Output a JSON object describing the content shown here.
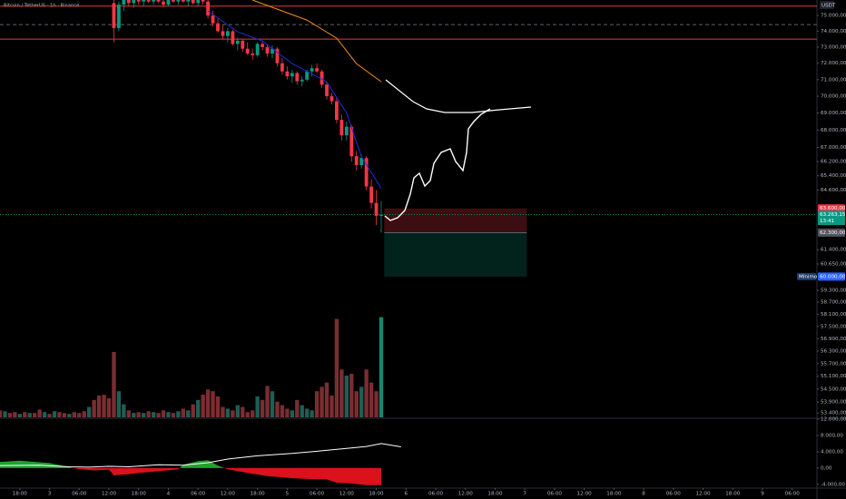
{
  "chart_data": {
    "type": "candlestick",
    "title": "Bitcoin / TetherUS · 1h · Binance",
    "currency": "USDT",
    "log_scale": true,
    "ylim": [
      53200,
      76000
    ],
    "xlim": [
      -4,
      161
    ],
    "yticks": [
      {
        "value": 75000,
        "label": "75.000,00"
      },
      {
        "value": 74000,
        "label": "74.000,00"
      },
      {
        "value": 73000,
        "label": "73.000,00"
      },
      {
        "value": 72000,
        "label": "72.000,00"
      },
      {
        "value": 71000,
        "label": "71.000,00"
      },
      {
        "value": 70000,
        "label": "70.000,00"
      },
      {
        "value": 69000,
        "label": "69.000,00"
      },
      {
        "value": 68000,
        "label": "68.000,00"
      },
      {
        "value": 67000,
        "label": "67.000,00"
      },
      {
        "value": 66200,
        "label": "66.200,00"
      },
      {
        "value": 65400,
        "label": "65.400,00"
      },
      {
        "value": 64600,
        "label": "64.600,00"
      },
      {
        "value": 61400,
        "label": "61.400,00"
      },
      {
        "value": 60650,
        "label": "60.650,00"
      },
      {
        "value": 59300,
        "label": "59.300,00"
      },
      {
        "value": 58700,
        "label": "58.700,00"
      },
      {
        "value": 58100,
        "label": "58.100,00"
      },
      {
        "value": 57500,
        "label": "57.500,00"
      },
      {
        "value": 56900,
        "label": "56.900,00"
      },
      {
        "value": 56300,
        "label": "56.300,00"
      },
      {
        "value": 55700,
        "label": "55.700,00"
      },
      {
        "value": 55100,
        "label": "55.100,00"
      },
      {
        "value": 54500,
        "label": "54.500,00"
      },
      {
        "value": 53900,
        "label": "53.900,00"
      },
      {
        "value": 53400,
        "label": "53.400,00"
      }
    ],
    "xticks": [
      {
        "value": 0,
        "label": "18:00"
      },
      {
        "value": 6,
        "label": "3"
      },
      {
        "value": 12,
        "label": "06:00"
      },
      {
        "value": 18,
        "label": "12:00"
      },
      {
        "value": 24,
        "label": "18:00"
      },
      {
        "value": 30,
        "label": "4"
      },
      {
        "value": 36,
        "label": "06:00"
      },
      {
        "value": 42,
        "label": "12:00"
      },
      {
        "value": 48,
        "label": "18:00"
      },
      {
        "value": 54,
        "label": "5"
      },
      {
        "value": 60,
        "label": "06:00"
      },
      {
        "value": 66,
        "label": "12:00"
      },
      {
        "value": 72,
        "label": "18:00"
      },
      {
        "value": 78,
        "label": "6"
      },
      {
        "value": 84,
        "label": "06:00"
      },
      {
        "value": 90,
        "label": "12:00"
      },
      {
        "value": 96,
        "label": "18:00"
      },
      {
        "value": 102,
        "label": "7"
      },
      {
        "value": 108,
        "label": "06:00"
      },
      {
        "value": 114,
        "label": "12:00"
      },
      {
        "value": 120,
        "label": "18:00"
      },
      {
        "value": 126,
        "label": "8"
      },
      {
        "value": 132,
        "label": "06:00"
      },
      {
        "value": 138,
        "label": "12:00"
      },
      {
        "value": 144,
        "label": "18:00"
      },
      {
        "value": 150,
        "label": "9"
      },
      {
        "value": 156,
        "label": "06:00"
      }
    ],
    "up_color": "#089981",
    "down_color": "#f23645",
    "x": [
      19,
      20,
      21,
      22,
      23,
      24,
      25,
      26,
      27,
      28,
      29,
      30,
      31,
      32,
      33,
      34,
      35,
      36,
      37,
      38,
      39,
      40,
      41,
      42,
      43,
      44,
      45,
      46,
      47,
      48,
      49,
      50,
      51,
      52,
      53,
      54,
      55,
      56,
      57,
      58,
      59,
      60,
      61,
      62,
      63,
      64,
      65,
      66,
      67,
      68,
      69,
      70,
      71,
      72,
      73
    ],
    "open": [
      75800,
      74200,
      75700,
      76100,
      75800,
      76000,
      75900,
      76100,
      75900,
      76000,
      75900,
      75700,
      76000,
      75900,
      76100,
      75900,
      76000,
      75800,
      76000,
      75900,
      75000,
      74500,
      74000,
      73700,
      74000,
      73200,
      73400,
      72900,
      72600,
      72500,
      73200,
      73000,
      72600,
      72900,
      72000,
      71500,
      71200,
      71400,
      70900,
      71000,
      71500,
      71700,
      71500,
      70700,
      70000,
      69700,
      68600,
      67700,
      68200,
      66500,
      66000,
      66400,
      64800,
      63900,
      63200
    ],
    "high": [
      76200,
      75900,
      76300,
      76400,
      76200,
      76300,
      76200,
      76400,
      76200,
      76300,
      76100,
      76100,
      76300,
      76200,
      76400,
      76200,
      76200,
      76100,
      76300,
      76200,
      75300,
      74800,
      74400,
      74200,
      74100,
      73600,
      73500,
      73300,
      72900,
      73300,
      73400,
      73200,
      73100,
      73000,
      72300,
      71800,
      71600,
      71500,
      71200,
      71600,
      71900,
      72000,
      71600,
      70900,
      70200,
      69900,
      68900,
      68500,
      68300,
      66800,
      66600,
      66500,
      65200,
      64600,
      64000
    ],
    "low": [
      73300,
      74000,
      75300,
      75600,
      75500,
      75700,
      75600,
      75800,
      75700,
      75800,
      75500,
      75600,
      75800,
      75700,
      75800,
      75600,
      75700,
      75600,
      75700,
      74800,
      74300,
      73900,
      73500,
      73300,
      73100,
      72800,
      72700,
      72500,
      72200,
      72400,
      72800,
      72400,
      72300,
      71800,
      71300,
      71000,
      70800,
      70700,
      70600,
      70900,
      71200,
      71400,
      70500,
      69800,
      69500,
      68400,
      67400,
      67400,
      66200,
      65700,
      65800,
      64600,
      63600,
      62700,
      62300
    ],
    "close": [
      74200,
      75700,
      76100,
      75800,
      76000,
      75900,
      76100,
      75900,
      76000,
      75900,
      75700,
      76000,
      75900,
      76100,
      75900,
      76000,
      75800,
      76000,
      75900,
      75000,
      74500,
      74000,
      73700,
      74000,
      73200,
      73400,
      72900,
      72600,
      72500,
      73200,
      73000,
      72600,
      72900,
      72000,
      71500,
      71200,
      71400,
      70900,
      71000,
      71500,
      71700,
      71500,
      70700,
      70000,
      69700,
      68600,
      67700,
      68200,
      66500,
      66000,
      66400,
      64800,
      63900,
      63200,
      63263.15
    ],
    "volume": {
      "x": [
        -4,
        -3,
        -2,
        -1,
        0,
        1,
        2,
        3,
        4,
        5,
        6,
        7,
        8,
        9,
        10,
        11,
        12,
        13,
        14,
        15,
        16,
        17,
        18,
        19,
        20,
        21,
        22,
        23,
        24,
        25,
        26,
        27,
        28,
        29,
        30,
        31,
        32,
        33,
        34,
        35,
        36,
        37,
        38,
        39,
        40,
        41,
        42,
        43,
        44,
        45,
        46,
        47,
        48,
        49,
        50,
        51,
        52,
        53,
        54,
        55,
        56,
        57,
        58,
        59,
        60,
        61,
        62,
        63,
        64,
        65,
        66,
        67,
        68,
        69,
        70,
        71,
        72,
        73
      ],
      "values": [
        8,
        7,
        5,
        6,
        4,
        6,
        5,
        5,
        9,
        6,
        4,
        7,
        6,
        5,
        4,
        6,
        5,
        7,
        12,
        20,
        25,
        26,
        22,
        75,
        30,
        15,
        8,
        5,
        6,
        5,
        7,
        6,
        5,
        8,
        6,
        5,
        7,
        10,
        8,
        15,
        20,
        26,
        32,
        30,
        24,
        12,
        10,
        8,
        14,
        12,
        6,
        8,
        24,
        20,
        36,
        30,
        18,
        14,
        10,
        8,
        20,
        14,
        10,
        8,
        30,
        35,
        40,
        25,
        113,
        55,
        48,
        50,
        30,
        35,
        55,
        40,
        30,
        115
      ],
      "colors": [
        "#7b2d31",
        "#1d5e55",
        "#7b2d31",
        "#7b2d31",
        "#1d5e55",
        "#7b2d31",
        "#1d5e55",
        "#7b2d31",
        "#7b2d31",
        "#1d5e55",
        "#7b2d31",
        "#1d5e55",
        "#7b2d31",
        "#7b2d31",
        "#1d5e55",
        "#7b2d31",
        "#7b2d31",
        "#7b2d31",
        "#1d5e55",
        "#7b2d31",
        "#7b2d31",
        "#7b2d31",
        "#7b2d31",
        "#7b2d31",
        "#1d5e55",
        "#1d5e55",
        "#7b2d31",
        "#1d5e55",
        "#7b2d31",
        "#1d5e55",
        "#7b2d31",
        "#1d5e55",
        "#7b2d31",
        "#7b2d31",
        "#1d5e55",
        "#7b2d31",
        "#1d5e55",
        "#7b2d31",
        "#1d5e55",
        "#7b2d31",
        "#1d5e55",
        "#7b2d31",
        "#7b2d31",
        "#7b2d31",
        "#7b2d31",
        "#7b2d31",
        "#1d5e55",
        "#7b2d31",
        "#1d5e55",
        "#7b2d31",
        "#7b2d31",
        "#7b2d31",
        "#1d5e55",
        "#7b2d31",
        "#7b2d31",
        "#1d5e55",
        "#7b2d31",
        "#7b2d31",
        "#7b2d31",
        "#1d5e55",
        "#7b2d31",
        "#1d5e55",
        "#1d5e55",
        "#1d5e55",
        "#7b2d31",
        "#7b2d31",
        "#7b2d31",
        "#7b2d31",
        "#7b2d31",
        "#7b2d31",
        "#1d5e55",
        "#7b2d31",
        "#7b2d31",
        "#1d5e55",
        "#7b2d31",
        "#7b2d31",
        "#7b2d31",
        "#16866f"
      ],
      "max": 125
    },
    "moving_averages": [
      {
        "color": "#1c2fd6",
        "x": [
          38,
          44,
          49,
          55,
          62,
          66,
          69,
          73
        ],
        "values": [
          75290,
          73960,
          73390,
          71980,
          70870,
          69000,
          66470,
          64700
        ]
      },
      {
        "color": "#f08c1f",
        "x": [
          47,
          51,
          58,
          64,
          68,
          73
        ],
        "values": [
          76000,
          75525,
          74710,
          73560,
          71980,
          70870
        ]
      }
    ],
    "hlines": [
      {
        "value": 75600,
        "color": "#e53935",
        "dash": false
      },
      {
        "value": 74420,
        "color": "#5d606b",
        "dash": true
      },
      {
        "value": 73500,
        "color": "#e53935",
        "dash": false
      }
    ],
    "last_price": 63263.15,
    "position": {
      "x": [
        73.6,
        102.4
      ],
      "stop": 63600,
      "entry": 62300,
      "target": 60000
    },
    "price_labels": [
      {
        "value": 63600,
        "label": "63.600,00",
        "color": "#f23645"
      },
      {
        "value": 63263.15,
        "label": "63.263,15",
        "color": "#089981"
      },
      {
        "value": 62300,
        "label": "62.300,00",
        "color": "#50535e"
      },
      {
        "value": 60000,
        "label": "60.000,00",
        "color": "#2962ff"
      }
    ],
    "countdown": "13:41",
    "low_tag": "Mínimo",
    "oscillator": {
      "ylim": [
        -5300,
        12000
      ],
      "yticks": [
        {
          "value": 12000,
          "label": "12.000,00"
        },
        {
          "value": 8000,
          "label": "8.000,00"
        },
        {
          "value": 4000,
          "label": "4.000,00"
        },
        {
          "value": 0,
          "label": "0,00"
        },
        {
          "value": -4000,
          "label": "-4.000,00"
        }
      ],
      "histogram": {
        "up_color": "#1fa12b",
        "down_color": "#d9121b",
        "x": [
          -4,
          0,
          6,
          10,
          12,
          15,
          18,
          19,
          22,
          24,
          28,
          32,
          33,
          36,
          38,
          40,
          42,
          46,
          50,
          55,
          58,
          62,
          64,
          67,
          70,
          73
        ],
        "values": [
          1500,
          1800,
          1200,
          200,
          -300,
          -600,
          -400,
          -1800,
          -1500,
          -1200,
          -800,
          -300,
          800,
          1700,
          1900,
          600,
          -300,
          -1200,
          -2000,
          -2500,
          -2700,
          -2800,
          -3600,
          -3800,
          -4200,
          -4200
        ]
      },
      "line": {
        "color": "#ffffff",
        "x": [
          -4,
          4,
          10,
          14,
          18,
          22,
          28,
          33,
          38,
          42,
          48,
          55,
          60,
          66,
          70,
          73,
          77
        ],
        "values": [
          600,
          700,
          300,
          200,
          400,
          300,
          800,
          700,
          1300,
          2200,
          3000,
          3600,
          4100,
          4800,
          5300,
          6000,
          5200
        ]
      }
    }
  }
}
